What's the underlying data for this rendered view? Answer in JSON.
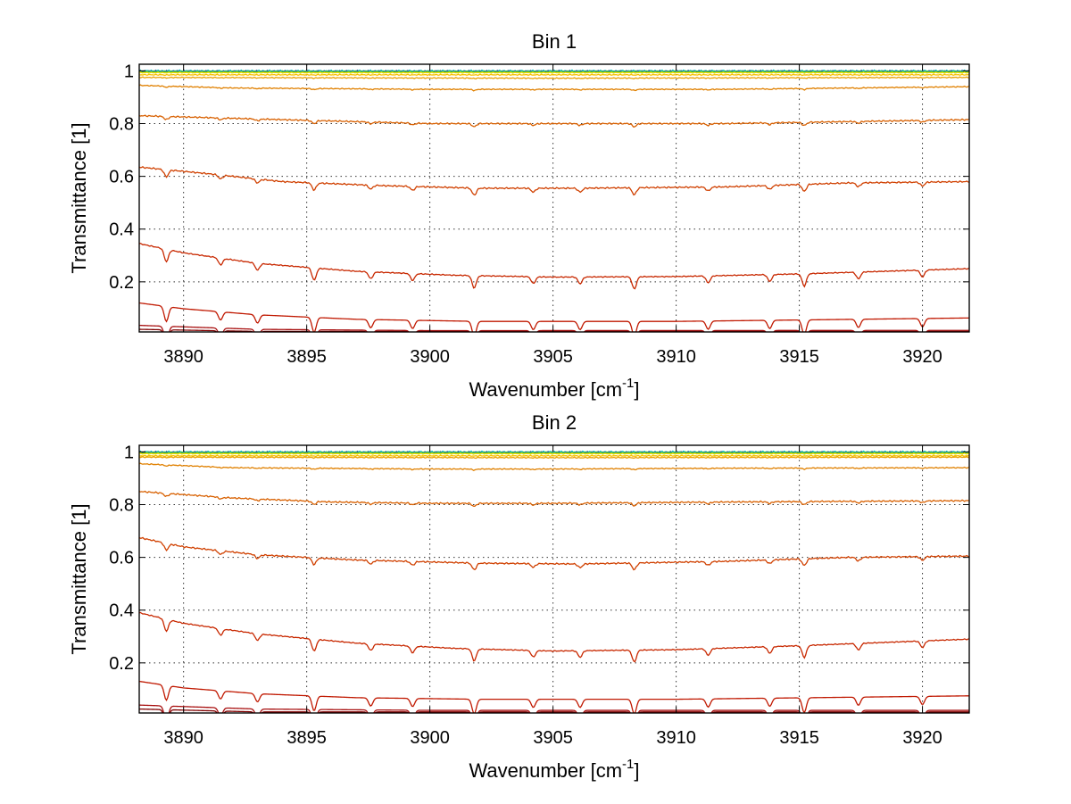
{
  "chart_data": [
    {
      "type": "line",
      "title": "Bin 1",
      "xlabel": "Wavenumber [cm",
      "xlabel_sup": "-1",
      "xlabel_suffix": "]",
      "ylabel": "Transmittance [1]",
      "xlim": [
        3888.2,
        3921.9
      ],
      "ylim": [
        0.01,
        1.025
      ],
      "xticks": [
        3890,
        3895,
        3900,
        3905,
        3910,
        3915,
        3920
      ],
      "xtick_labels": [
        "3890",
        "3895",
        "3900",
        "3905",
        "3910",
        "3915",
        "3920"
      ],
      "yticks": [
        0.2,
        0.4,
        0.6,
        0.8,
        1
      ],
      "ytick_labels": [
        "0.2",
        "0.4",
        "0.6",
        "0.8",
        "1"
      ],
      "grid": true,
      "series": [
        {
          "color": "#00c0c0",
          "anchors": [
            [
              3888.2,
              0.999
            ],
            [
              3905,
              0.999
            ],
            [
              3921.9,
              0.999
            ]
          ],
          "noise": 0.004
        },
        {
          "color": "#2060a0",
          "anchors": [
            [
              3888.2,
              0.998
            ],
            [
              3905,
              0.998
            ],
            [
              3921.9,
              0.998
            ]
          ],
          "noise": 0.004
        },
        {
          "color": "#40c040",
          "anchors": [
            [
              3888.2,
              0.997
            ],
            [
              3905,
              0.997
            ],
            [
              3921.9,
              0.997
            ]
          ],
          "noise": 0.003
        },
        {
          "color": "#f0e000",
          "anchors": [
            [
              3888.2,
              0.993
            ],
            [
              3905,
              0.993
            ],
            [
              3921.9,
              0.993
            ]
          ],
          "noise": 0.002
        },
        {
          "color": "#f8c000",
          "anchors": [
            [
              3888.2,
              0.985
            ],
            [
              3905,
              0.985
            ],
            [
              3921.9,
              0.985
            ]
          ],
          "noise": 0.002
        },
        {
          "color": "#e8a000",
          "anchors": [
            [
              3888.2,
              0.975
            ],
            [
              3905,
              0.972
            ],
            [
              3921.9,
              0.975
            ]
          ],
          "noise": 0.002
        },
        {
          "color": "#e08000",
          "anchors": [
            [
              3888.2,
              0.945
            ],
            [
              3892,
              0.935
            ],
            [
              3900,
              0.93
            ],
            [
              3905,
              0.93
            ],
            [
              3912,
              0.93
            ],
            [
              3921.9,
              0.94
            ]
          ],
          "noise": 0.002
        },
        {
          "color": "#d86000",
          "anchors": [
            [
              3888.2,
              0.83
            ],
            [
              3892,
              0.82
            ],
            [
              3896,
              0.81
            ],
            [
              3900,
              0.8
            ],
            [
              3905,
              0.8
            ],
            [
              3912,
              0.8
            ],
            [
              3921.9,
              0.815
            ]
          ],
          "noise": 0.003
        },
        {
          "color": "#d04000",
          "anchors": [
            [
              3888.2,
              0.635
            ],
            [
              3891,
              0.61
            ],
            [
              3894,
              0.58
            ],
            [
              3898,
              0.565
            ],
            [
              3902,
              0.555
            ],
            [
              3906,
              0.555
            ],
            [
              3912,
              0.56
            ],
            [
              3917,
              0.575
            ],
            [
              3921.9,
              0.58
            ]
          ],
          "noise": 0.003
        },
        {
          "color": "#c82800",
          "anchors": [
            [
              3888.2,
              0.345
            ],
            [
              3890,
              0.31
            ],
            [
              3893,
              0.27
            ],
            [
              3897,
              0.24
            ],
            [
              3901,
              0.225
            ],
            [
              3905,
              0.218
            ],
            [
              3910,
              0.22
            ],
            [
              3915,
              0.23
            ],
            [
              3921.9,
              0.25
            ]
          ],
          "noise": 0.002
        },
        {
          "color": "#c01800",
          "anchors": [
            [
              3888.2,
              0.12
            ],
            [
              3890,
              0.098
            ],
            [
              3893,
              0.075
            ],
            [
              3897,
              0.058
            ],
            [
              3902,
              0.05
            ],
            [
              3910,
              0.05
            ],
            [
              3921.9,
              0.063
            ]
          ],
          "noise": 0.0
        },
        {
          "color": "#a81010",
          "anchors": [
            [
              3888.2,
              0.035
            ],
            [
              3893,
              0.02
            ],
            [
              3900,
              0.015
            ],
            [
              3921.9,
              0.016
            ]
          ],
          "noise": 0.0
        },
        {
          "color": "#800000",
          "anchors": [
            [
              3888.2,
              0.02
            ],
            [
              3893,
              0.012
            ],
            [
              3921.9,
              0.012
            ]
          ],
          "noise": 0.0
        }
      ]
    },
    {
      "type": "line",
      "title": "Bin 2",
      "xlabel": "Wavenumber [cm",
      "xlabel_sup": "-1",
      "xlabel_suffix": "]",
      "ylabel": "Transmittance [1]",
      "xlim": [
        3888.2,
        3921.9
      ],
      "ylim": [
        0.01,
        1.025
      ],
      "xticks": [
        3890,
        3895,
        3900,
        3905,
        3910,
        3915,
        3920
      ],
      "xtick_labels": [
        "3890",
        "3895",
        "3900",
        "3905",
        "3910",
        "3915",
        "3920"
      ],
      "yticks": [
        0.2,
        0.4,
        0.6,
        0.8,
        1
      ],
      "ytick_labels": [
        "0.2",
        "0.4",
        "0.6",
        "0.8",
        "1"
      ],
      "grid": true,
      "series": [
        {
          "color": "#00c0c0",
          "anchors": [
            [
              3888.2,
              0.999
            ],
            [
              3905,
              0.999
            ],
            [
              3921.9,
              0.999
            ]
          ],
          "noise": 0.004
        },
        {
          "color": "#2060a0",
          "anchors": [
            [
              3888.2,
              0.998
            ],
            [
              3905,
              0.998
            ],
            [
              3921.9,
              0.998
            ]
          ],
          "noise": 0.004
        },
        {
          "color": "#40c040",
          "anchors": [
            [
              3888.2,
              0.997
            ],
            [
              3905,
              0.997
            ],
            [
              3921.9,
              0.997
            ]
          ],
          "noise": 0.003
        },
        {
          "color": "#f0e000",
          "anchors": [
            [
              3888.2,
              0.993
            ],
            [
              3905,
              0.993
            ],
            [
              3921.9,
              0.993
            ]
          ],
          "noise": 0.002
        },
        {
          "color": "#f8c000",
          "anchors": [
            [
              3888.2,
              0.985
            ],
            [
              3905,
              0.985
            ],
            [
              3921.9,
              0.985
            ]
          ],
          "noise": 0.002
        },
        {
          "color": "#e8a000",
          "anchors": [
            [
              3888.2,
              0.98
            ],
            [
              3905,
              0.978
            ],
            [
              3921.9,
              0.98
            ]
          ],
          "noise": 0.002
        },
        {
          "color": "#e08000",
          "anchors": [
            [
              3888.2,
              0.955
            ],
            [
              3892,
              0.94
            ],
            [
              3900,
              0.935
            ],
            [
              3905,
              0.935
            ],
            [
              3912,
              0.938
            ],
            [
              3921.9,
              0.94
            ]
          ],
          "noise": 0.002
        },
        {
          "color": "#d86000",
          "anchors": [
            [
              3888.2,
              0.85
            ],
            [
              3892,
              0.825
            ],
            [
              3896,
              0.81
            ],
            [
              3900,
              0.805
            ],
            [
              3905,
              0.805
            ],
            [
              3912,
              0.81
            ],
            [
              3921.9,
              0.815
            ]
          ],
          "noise": 0.003
        },
        {
          "color": "#d04000",
          "anchors": [
            [
              3888.2,
              0.675
            ],
            [
              3890,
              0.64
            ],
            [
              3893,
              0.61
            ],
            [
              3897,
              0.59
            ],
            [
              3902,
              0.578
            ],
            [
              3906,
              0.575
            ],
            [
              3912,
              0.585
            ],
            [
              3917,
              0.6
            ],
            [
              3921.9,
              0.605
            ]
          ],
          "noise": 0.003
        },
        {
          "color": "#c82800",
          "anchors": [
            [
              3888.2,
              0.39
            ],
            [
              3890,
              0.35
            ],
            [
              3893,
              0.31
            ],
            [
              3897,
              0.275
            ],
            [
              3901,
              0.255
            ],
            [
              3905,
              0.245
            ],
            [
              3910,
              0.25
            ],
            [
              3915,
              0.265
            ],
            [
              3921.9,
              0.29
            ]
          ],
          "noise": 0.002
        },
        {
          "color": "#c01800",
          "anchors": [
            [
              3888.2,
              0.13
            ],
            [
              3890,
              0.105
            ],
            [
              3893,
              0.083
            ],
            [
              3897,
              0.068
            ],
            [
              3902,
              0.062
            ],
            [
              3910,
              0.062
            ],
            [
              3921.9,
              0.075
            ]
          ],
          "noise": 0.0
        },
        {
          "color": "#a81010",
          "anchors": [
            [
              3888.2,
              0.04
            ],
            [
              3893,
              0.025
            ],
            [
              3900,
              0.02
            ],
            [
              3921.9,
              0.02
            ]
          ],
          "noise": 0.0
        },
        {
          "color": "#800000",
          "anchors": [
            [
              3888.2,
              0.025
            ],
            [
              3893,
              0.014
            ],
            [
              3921.9,
              0.014
            ]
          ],
          "noise": 0.0
        }
      ]
    }
  ],
  "absorption_lines": [
    3889.3,
    3891.5,
    3893.0,
    3895.3,
    3897.6,
    3899.3,
    3901.8,
    3904.2,
    3906.1,
    3908.3,
    3911.3,
    3913.8,
    3915.2,
    3917.4,
    3920.0
  ]
}
